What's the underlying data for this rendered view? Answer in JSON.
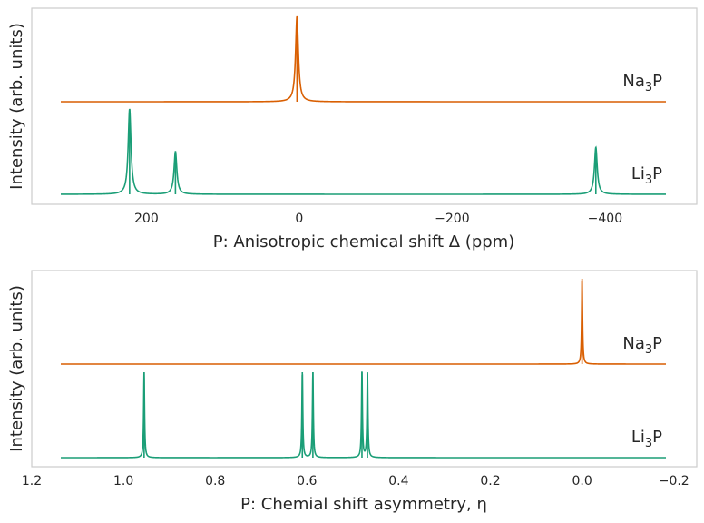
{
  "colors": {
    "Na3P": "#d95f02",
    "Li3P": "#1b9e77",
    "frame": "#cccccc",
    "text": "#262626"
  },
  "chart_data": [
    {
      "type": "line",
      "xlabel": "P: Anisotropic chemical shift Δ (ppm)",
      "ylabel": "Intensity (arb. units)",
      "xlim": [
        350,
        -520
      ],
      "x_inverted": true,
      "xticks": [
        200,
        0,
        -200,
        -400
      ],
      "xtick_labels": [
        "200",
        "0",
        "−200",
        "−400"
      ],
      "y_ticks_shown": false,
      "grid": false,
      "series": [
        {
          "name": "Na3P",
          "label_base": "Na",
          "label_sub": "3",
          "label_tail": "P",
          "offset": 1.0,
          "peaks": [
            {
              "x": 3,
              "height": 1.0
            }
          ]
        },
        {
          "name": "Li3P",
          "label_base": "Li",
          "label_sub": "3",
          "label_tail": "P",
          "offset": 0.0,
          "peaks": [
            {
              "x": 222,
              "height": 1.0
            },
            {
              "x": 162,
              "height": 0.5
            },
            {
              "x": -388,
              "height": 0.55
            }
          ]
        }
      ]
    },
    {
      "type": "line",
      "xlabel": "P: Chemial shift asymmetry, η",
      "ylabel": "Intensity (arb. units)",
      "xlim": [
        1.2,
        -0.25
      ],
      "x_inverted": true,
      "xticks": [
        1.2,
        1.0,
        0.8,
        0.6,
        0.4,
        0.2,
        0.0,
        -0.2
      ],
      "xtick_labels": [
        "1.2",
        "1.0",
        "0.8",
        "0.6",
        "0.4",
        "0.2",
        "0.0",
        "−0.2"
      ],
      "y_ticks_shown": false,
      "grid": false,
      "series": [
        {
          "name": "Na3P",
          "label_base": "Na",
          "label_sub": "3",
          "label_tail": "P",
          "offset": 1.0,
          "peaks": [
            {
              "x": 0.0,
              "height": 1.0
            }
          ]
        },
        {
          "name": "Li3P",
          "label_base": "Li",
          "label_sub": "3",
          "label_tail": "P",
          "offset": 0.0,
          "peaks": [
            {
              "x": 0.955,
              "height": 1.0
            },
            {
              "x": 0.61,
              "height": 1.0
            },
            {
              "x": 0.587,
              "height": 1.0
            },
            {
              "x": 0.48,
              "height": 1.0
            },
            {
              "x": 0.468,
              "height": 1.0
            }
          ]
        }
      ]
    }
  ]
}
